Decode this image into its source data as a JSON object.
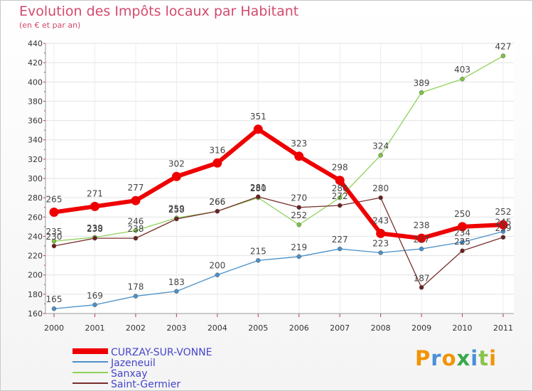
{
  "header": {
    "title": "Evolution des Impôts locaux par Habitant",
    "subtitle": "(en € et par an)"
  },
  "logo": {
    "letters": [
      "P",
      "r",
      "o",
      "x",
      "i",
      "t",
      "i"
    ],
    "colors": [
      "#f29400",
      "#4a90d9",
      "#f29400",
      "#3aa84a",
      "#4a90d9",
      "#8bc34a",
      "#f29400"
    ]
  },
  "chart_data": {
    "type": "line",
    "title": "Evolution des Impôts locaux par Habitant",
    "subtitle": "(en € et par an)",
    "xlabel": "",
    "ylabel": "",
    "categories": [
      "2000",
      "2001",
      "2002",
      "2003",
      "2004",
      "2005",
      "2006",
      "2007",
      "2008",
      "2009",
      "2010",
      "2011"
    ],
    "ylim": [
      160,
      440
    ],
    "yticks": [
      160,
      180,
      200,
      220,
      240,
      260,
      280,
      300,
      320,
      340,
      360,
      380,
      400,
      420,
      440
    ],
    "grid": true,
    "legend_position": "bottom-left",
    "series": [
      {
        "name": "Jazeneuil",
        "color": "#4a90c8",
        "dot": "#4a90c8",
        "width": 1.3,
        "bold": false,
        "values": [
          165,
          169,
          178,
          183,
          200,
          215,
          219,
          227,
          223,
          227,
          234,
          245
        ],
        "labels": [
          "165",
          "169",
          "178",
          "183",
          "200",
          "215",
          "219",
          "227",
          "223",
          "227",
          "234",
          "245"
        ]
      },
      {
        "name": "Sanxay",
        "color": "#8fd15a",
        "dot": "#7cc242",
        "width": 1.3,
        "bold": false,
        "values": [
          235,
          239,
          246,
          259,
          266,
          280,
          252,
          280,
          324,
          389,
          403,
          427
        ],
        "labels": [
          "235",
          "239",
          "246",
          "259",
          "266",
          "280",
          "252",
          "280",
          "324",
          "389",
          "403",
          "427"
        ]
      },
      {
        "name": "Saint-Germier",
        "color": "#7a2e2e",
        "dot": "#6b2020",
        "width": 1.3,
        "bold": false,
        "values": [
          230,
          238,
          238,
          258,
          266,
          281,
          270,
          272,
          280,
          187,
          225,
          239
        ],
        "labels": [
          "230",
          "238",
          "238",
          "258",
          "266",
          "281",
          "270",
          "272",
          "280",
          "187",
          "225",
          "239"
        ]
      },
      {
        "name": "CURZAY-SUR-VONNE",
        "color": "#ee0000",
        "dot": "#ee0000",
        "width": 6,
        "bold": true,
        "values": [
          265,
          271,
          277,
          302,
          316,
          351,
          323,
          298,
          243,
          238,
          250,
          252
        ],
        "labels": [
          "265",
          "271",
          "277",
          "302",
          "316",
          "351",
          "323",
          "298",
          "243",
          "238",
          "250",
          "252"
        ]
      }
    ]
  }
}
